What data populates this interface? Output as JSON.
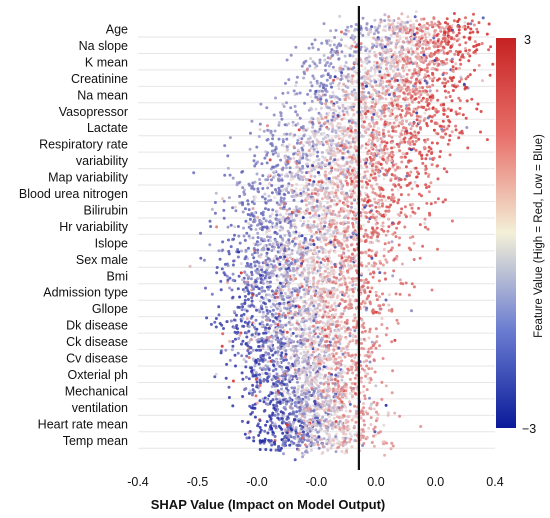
{
  "chart_data": {
    "type": "scatter",
    "title": "",
    "xlabel": "SHAP Value (Impact on Model Output)",
    "ylabel": "",
    "xlim": [
      -0.4,
      0.4
    ],
    "x_ticks": [
      "-0.4",
      "-0.5",
      "-0.0",
      "-0.0",
      "0.0",
      "0.0",
      "0.4"
    ],
    "reference_line_x": 0.095,
    "grid": "horizontal",
    "features": [
      {
        "label": "Age",
        "center": 0.22,
        "spread": 0.1,
        "bias": 0.85
      },
      {
        "label": "Na slope",
        "center": 0.2,
        "spread": 0.11,
        "bias": 0.75
      },
      {
        "label": "K mean",
        "center": 0.18,
        "spread": 0.12,
        "bias": 0.7
      },
      {
        "label": "Creatinine",
        "center": 0.16,
        "spread": 0.12,
        "bias": 0.65
      },
      {
        "label": "Na mean",
        "center": 0.14,
        "spread": 0.12,
        "bias": 0.6
      },
      {
        "label": "Vasopressor",
        "center": 0.12,
        "spread": 0.12,
        "bias": 0.55
      },
      {
        "label": "Lactate",
        "center": 0.1,
        "spread": 0.13,
        "bias": 0.5
      },
      {
        "label": "Respiratory rate",
        "center": 0.08,
        "spread": 0.13,
        "bias": 0.45
      },
      {
        "label": "variability",
        "center": 0.06,
        "spread": 0.13,
        "bias": 0.4
      },
      {
        "label": "Map variability",
        "center": 0.04,
        "spread": 0.13,
        "bias": 0.3
      },
      {
        "label": "Blood urea nitrogen",
        "center": 0.03,
        "spread": 0.13,
        "bias": 0.25
      },
      {
        "label": "Bilirubin",
        "center": 0.02,
        "spread": 0.13,
        "bias": 0.2
      },
      {
        "label": "Hr variability",
        "center": 0.01,
        "spread": 0.13,
        "bias": 0.1
      },
      {
        "label": "Islope",
        "center": 0.0,
        "spread": 0.13,
        "bias": 0.0
      },
      {
        "label": "Sex male",
        "center": -0.01,
        "spread": 0.13,
        "bias": -0.1
      },
      {
        "label": "Bmi",
        "center": -0.02,
        "spread": 0.12,
        "bias": -0.2
      },
      {
        "label": "Admission type",
        "center": -0.02,
        "spread": 0.12,
        "bias": -0.3
      },
      {
        "label": "Gllope",
        "center": -0.03,
        "spread": 0.11,
        "bias": -0.4
      },
      {
        "label": "Dk disease",
        "center": -0.03,
        "spread": 0.11,
        "bias": -0.45
      },
      {
        "label": "Ck disease",
        "center": -0.03,
        "spread": 0.1,
        "bias": -0.5
      },
      {
        "label": "Cv disease",
        "center": -0.03,
        "spread": 0.1,
        "bias": -0.55
      },
      {
        "label": "Oxterial ph",
        "center": -0.02,
        "spread": 0.1,
        "bias": -0.6
      },
      {
        "label": "Mechanical",
        "center": -0.02,
        "spread": 0.09,
        "bias": -0.65
      },
      {
        "label": "ventilation",
        "center": -0.01,
        "spread": 0.09,
        "bias": -0.7
      },
      {
        "label": "Heart rate mean",
        "center": 0.0,
        "spread": 0.09,
        "bias": -0.75
      },
      {
        "label": "Temp mean",
        "center": 0.0,
        "spread": 0.09,
        "bias": -0.8
      }
    ],
    "colorbar": {
      "max_label": "3",
      "min_label": "−3",
      "label": "Feature Value (High = Red, Low = Blue)",
      "high_color": "#d62728",
      "mid_color": "#f3f0d8",
      "low_color": "#0a1a9a"
    }
  }
}
